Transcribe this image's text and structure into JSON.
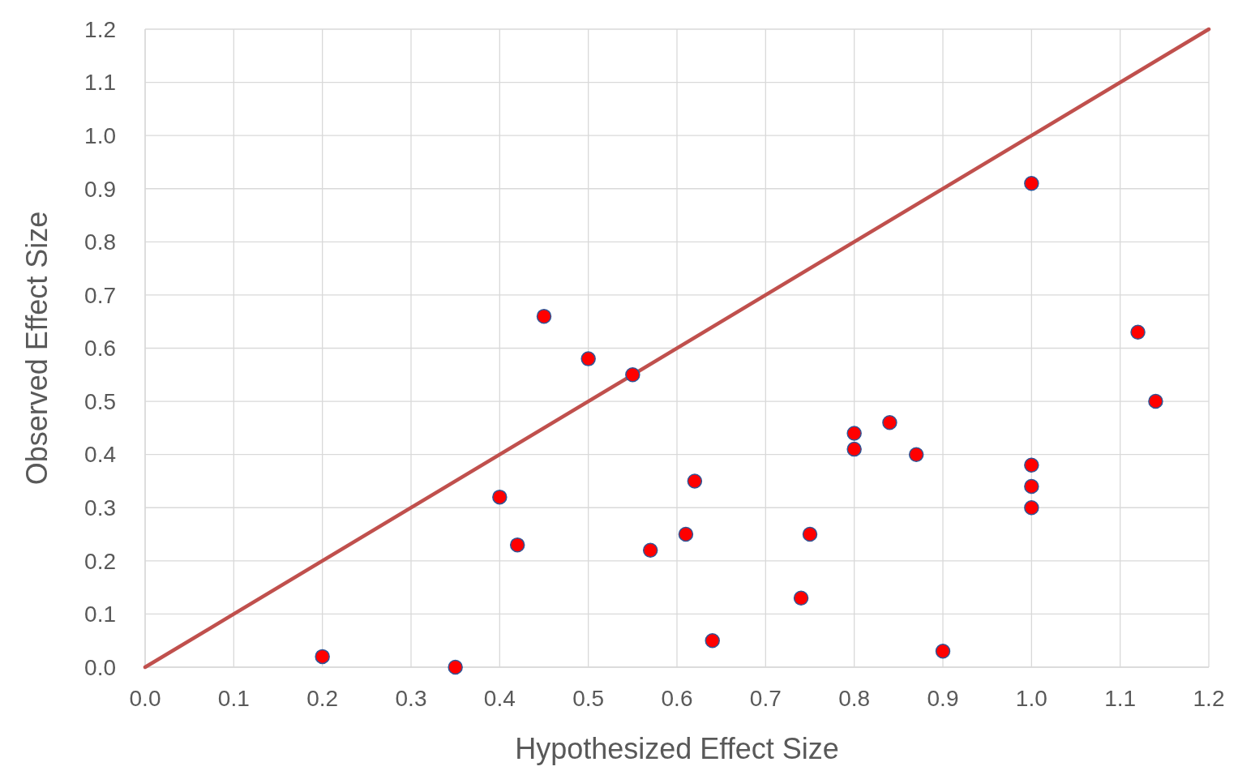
{
  "chart_data": {
    "type": "scatter",
    "xlabel": "Hypothesized Effect Size",
    "ylabel": "Observed Effect Size",
    "xlim": [
      0,
      1.2
    ],
    "ylim": [
      0,
      1.2
    ],
    "xticks": [
      {
        "value": 0,
        "label": "0.0"
      },
      0.1,
      0.2,
      0.3,
      0.4,
      0.5,
      0.6,
      0.7,
      0.8,
      0.9,
      {
        "value": 1,
        "label": "1.0"
      },
      1.1,
      1.2
    ],
    "yticks": [
      {
        "value": 0,
        "label": "0.0"
      },
      0.1,
      0.2,
      0.3,
      0.4,
      0.5,
      0.6,
      0.7,
      0.8,
      0.9,
      {
        "value": 1,
        "label": "1.0"
      },
      1.1,
      1.2
    ],
    "grid": true,
    "series": [
      {
        "type": "line",
        "color": "#c0504d",
        "x": [
          0,
          1.2
        ],
        "values": [
          0,
          1.2
        ],
        "marker": "none",
        "line_style": "solid"
      },
      {
        "color": "#ff0000",
        "marker": "circle",
        "x": [
          0.2,
          0.35,
          0.4,
          0.42,
          0.45,
          0.5,
          0.55,
          0.57,
          0.61,
          0.62,
          0.64,
          0.74,
          0.75,
          0.8,
          0.8,
          0.84,
          0.87,
          0.9,
          1.0,
          1.0,
          1.0,
          1.0,
          1.12,
          1.14
        ],
        "values": [
          0.02,
          0.0,
          0.32,
          0.23,
          0.66,
          0.58,
          0.55,
          0.22,
          0.25,
          0.35,
          0.05,
          0.13,
          0.25,
          0.44,
          0.41,
          0.46,
          0.4,
          0.03,
          0.91,
          0.38,
          0.34,
          0.3,
          0.63,
          0.5
        ]
      }
    ]
  }
}
